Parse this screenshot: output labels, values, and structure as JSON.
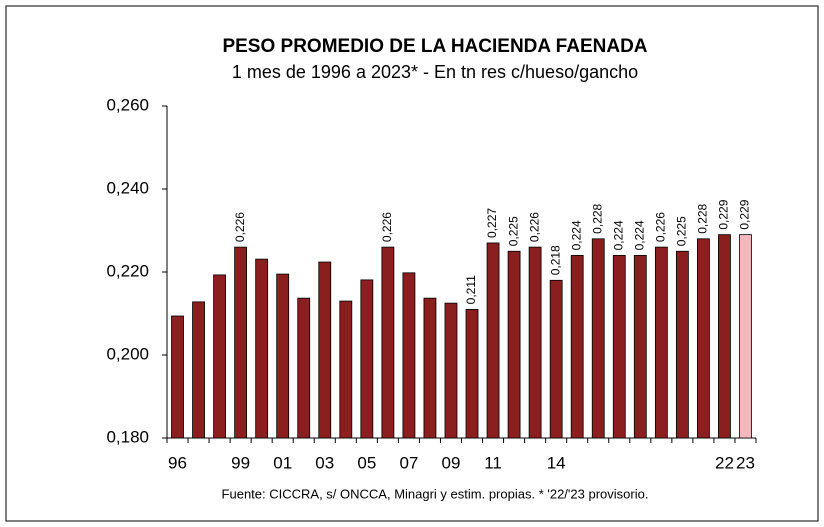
{
  "chart_data": {
    "type": "bar",
    "title": "PESO PROMEDIO DE LA HACIENDA FAENADA",
    "subtitle": "1 mes de 1996 a 2023* - En tn res c/hueso/gancho",
    "source": "Fuente: CICCRA, s/ ONCCA, Minagri y estim. propias. * '22/'23 provisorio.",
    "categories": [
      "96",
      null,
      null,
      "99",
      null,
      "01",
      null,
      "03",
      null,
      "05",
      null,
      "07",
      null,
      "09",
      null,
      "11",
      null,
      null,
      "14",
      null,
      null,
      null,
      null,
      null,
      null,
      null,
      "22",
      "23"
    ],
    "values": [
      0.2094,
      0.2128,
      0.2193,
      0.226,
      0.2231,
      0.2195,
      0.2137,
      0.2224,
      0.213,
      0.2181,
      0.226,
      0.2198,
      0.2137,
      0.2125,
      0.211,
      0.227,
      0.225,
      0.226,
      0.218,
      0.224,
      0.228,
      0.224,
      0.224,
      0.226,
      0.225,
      0.228,
      0.229,
      0.229
    ],
    "value_labels": [
      null,
      null,
      null,
      "0,226",
      null,
      null,
      null,
      null,
      null,
      null,
      "0,226",
      null,
      null,
      null,
      "0,211",
      "0,227",
      "0,225",
      "0,226",
      "0,218",
      "0,224",
      "0,228",
      "0,224",
      "0,224",
      "0,226",
      "0,225",
      "0,228",
      "0,229",
      "0,229"
    ],
    "colors": [
      "#8b1f1f",
      "#8b1f1f",
      "#8b1f1f",
      "#8b1f1f",
      "#8b1f1f",
      "#8b1f1f",
      "#8b1f1f",
      "#8b1f1f",
      "#8b1f1f",
      "#8b1f1f",
      "#8b1f1f",
      "#8b1f1f",
      "#8b1f1f",
      "#8b1f1f",
      "#8b1f1f",
      "#8b1f1f",
      "#8b1f1f",
      "#8b1f1f",
      "#8b1f1f",
      "#8b1f1f",
      "#8b1f1f",
      "#8b1f1f",
      "#8b1f1f",
      "#8b1f1f",
      "#8b1f1f",
      "#8b1f1f",
      "#8b1f1f",
      "#f2b8bb"
    ],
    "ylim": [
      0.18,
      0.26
    ],
    "yticks": [
      {
        "value": 0.18,
        "label": "0,180"
      },
      {
        "value": 0.2,
        "label": "0,200"
      },
      {
        "value": 0.22,
        "label": "0,220"
      },
      {
        "value": 0.24,
        "label": "0,240"
      },
      {
        "value": 0.26,
        "label": "0,260"
      }
    ],
    "grid": false
  }
}
